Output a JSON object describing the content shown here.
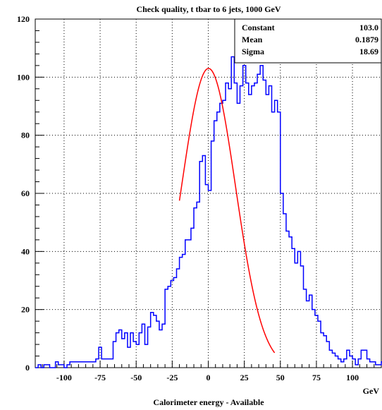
{
  "chart_data": {
    "type": "bar",
    "title": "Check quality, t tbar to 6 jets, 1000 GeV",
    "xlabel": "Calorimeter energy - Available",
    "xunit": "GeV",
    "ylabel": "",
    "xlim": [
      -120,
      120
    ],
    "ylim": [
      0,
      120
    ],
    "grid": true,
    "xticks": [
      -100,
      -75,
      -50,
      -25,
      0,
      25,
      50,
      75,
      100
    ],
    "yticks": [
      0,
      20,
      40,
      60,
      80,
      100,
      120
    ],
    "bin_width": 2,
    "bin_start": -120,
    "counts": [
      0,
      1,
      0,
      1,
      1,
      0,
      0,
      2,
      1,
      1,
      0,
      1,
      2,
      2,
      2,
      2,
      2,
      2,
      2,
      2,
      2,
      3,
      7,
      3,
      3,
      3,
      3,
      9,
      12,
      13,
      10,
      12,
      7,
      12,
      9,
      8,
      12,
      15,
      8,
      14,
      19,
      18,
      16,
      13,
      15,
      27,
      28,
      30,
      31,
      34,
      38,
      39,
      44,
      44,
      48,
      55,
      57,
      71,
      73,
      63,
      61,
      78,
      85,
      88,
      91,
      92,
      98,
      96,
      107,
      98,
      91,
      97,
      104,
      98,
      94,
      97,
      98,
      101,
      104,
      99,
      94,
      97,
      88,
      92,
      88,
      60,
      53,
      47,
      45,
      41,
      36,
      40,
      35,
      27,
      23,
      25,
      20,
      18,
      16,
      12,
      11,
      9,
      6,
      5,
      4,
      3,
      2,
      3,
      6,
      4,
      3,
      1,
      3,
      6,
      6,
      3,
      2,
      2,
      1,
      1,
      2,
      0,
      2,
      1,
      1,
      0,
      1,
      1,
      0,
      1,
      1,
      0,
      1,
      0,
      0,
      1,
      1,
      0,
      2,
      1,
      0
    ],
    "fit": {
      "type": "gaussian",
      "color": "#ff0000",
      "range": [
        -20,
        46
      ]
    },
    "stats": [
      {
        "label": "Constant",
        "value": "103.0"
      },
      {
        "label": "Mean",
        "value": "0.1879"
      },
      {
        "label": "Sigma",
        "value": "18.69"
      }
    ],
    "colors": {
      "histogram": "#0000ff",
      "fit": "#ff0000",
      "frame": "#000000"
    }
  }
}
